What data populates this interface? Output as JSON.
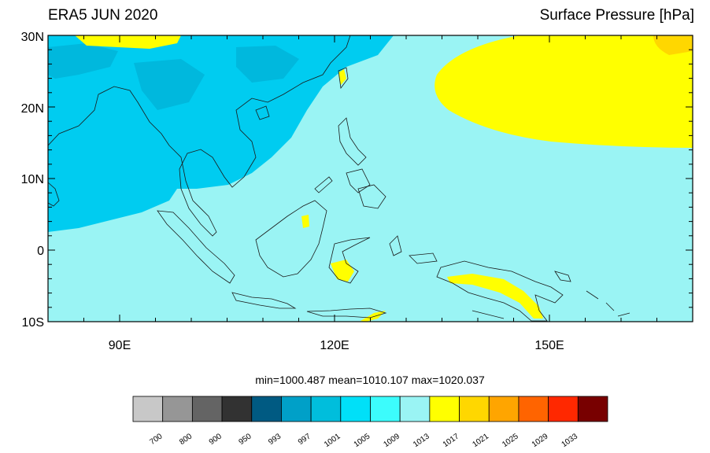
{
  "title_left": "ERA5 JUN 2020",
  "title_right": "Surface Pressure [hPa]",
  "colors": {
    "bg_main": "#9af4f4",
    "mid_cyan": "#00ccf0",
    "deep_cyan": "#00b8dd",
    "high": "#ffff00",
    "orange_yellow": "#ffd700",
    "coast": "#1a1a1a"
  },
  "map": {
    "lon_range": [
      80,
      170
    ],
    "lat_range": [
      -10,
      30
    ],
    "lon_labels": [
      "90E",
      "120E",
      "150E"
    ],
    "lat_labels": [
      "30N",
      "20N",
      "10N",
      "0",
      "10S"
    ]
  },
  "stats": {
    "text": "min=1000.487  mean=1010.107  max=1020.037"
  },
  "colorbar": {
    "colors": [
      "#c8c8c8",
      "#969696",
      "#646464",
      "#323232",
      "#005a82",
      "#00a0c8",
      "#00bedc",
      "#00e0f8",
      "#3cfcfc",
      "#9af4f4",
      "#ffff00",
      "#ffd700",
      "#ffa500",
      "#ff6400",
      "#ff2800",
      "#780000"
    ],
    "labels": [
      "700",
      "800",
      "900",
      "950",
      "993",
      "997",
      "1001",
      "1005",
      "1009",
      "1013",
      "1017",
      "1021",
      "1025",
      "1029",
      "1033"
    ]
  }
}
